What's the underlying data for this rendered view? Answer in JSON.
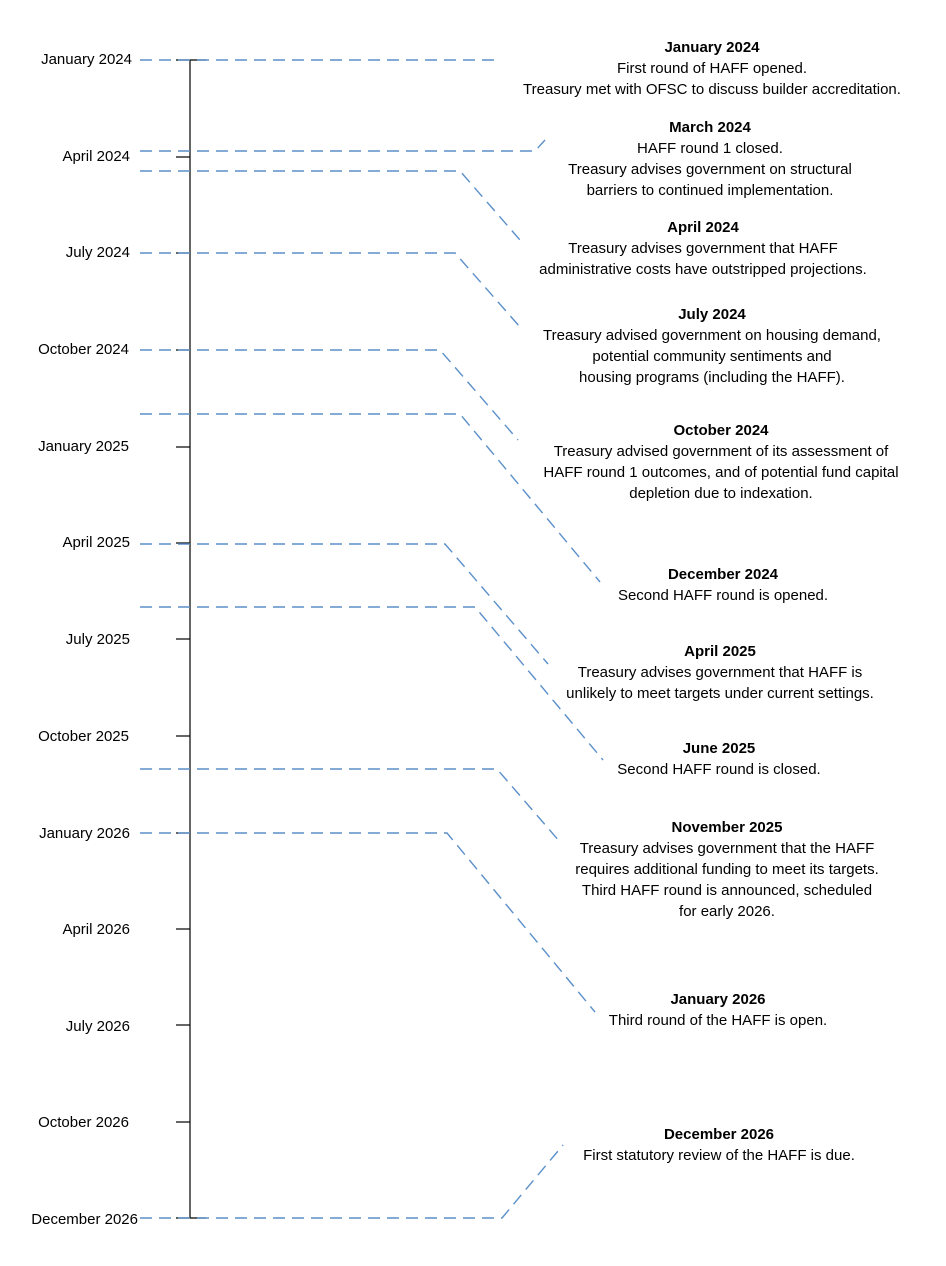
{
  "line_color": "#5B8FC9",
  "axis_color": "#000000",
  "axis_labels": [
    "January 2024",
    "April 2024",
    "July 2024",
    "October 2024",
    "January 2025",
    "April 2025",
    "July 2025",
    "October 2025",
    "January 2026",
    "April 2026",
    "July 2026",
    "October 2026",
    "December 2026"
  ],
  "events": [
    {
      "date": "January 2024",
      "lines": [
        "First round of HAFF opened.",
        "Treasury met with OFSC to discuss builder accreditation."
      ]
    },
    {
      "date": "March 2024",
      "lines": [
        "HAFF round 1 closed.",
        "Treasury advises government on structural",
        "barriers to continued implementation."
      ]
    },
    {
      "date": "April 2024",
      "lines": [
        "Treasury advises government that HAFF",
        "administrative costs have outstripped projections."
      ]
    },
    {
      "date": "July 2024",
      "lines": [
        "Treasury advised government on housing demand,",
        "potential community sentiments and",
        "housing programs (including the HAFF)."
      ]
    },
    {
      "date": "October 2024",
      "lines": [
        "Treasury advised government of its assessment of",
        "HAFF round 1 outcomes, and of potential fund capital",
        "depletion due to indexation."
      ]
    },
    {
      "date": "December 2024",
      "lines": [
        "Second HAFF round is opened."
      ]
    },
    {
      "date": "April 2025",
      "lines": [
        "Treasury advises government that HAFF is",
        "unlikely to meet targets under current settings."
      ]
    },
    {
      "date": "June 2025",
      "lines": [
        "Second HAFF round is closed."
      ]
    },
    {
      "date": "November 2025",
      "lines": [
        "Treasury advises government that the HAFF",
        "requires additional funding to meet its targets.",
        "Third HAFF round is announced, scheduled",
        "for early 2026."
      ]
    },
    {
      "date": "January 2026",
      "lines": [
        "Third round of the HAFF is open."
      ]
    },
    {
      "date": "December 2026",
      "lines": [
        "First statutory review of the HAFF is due."
      ]
    }
  ]
}
